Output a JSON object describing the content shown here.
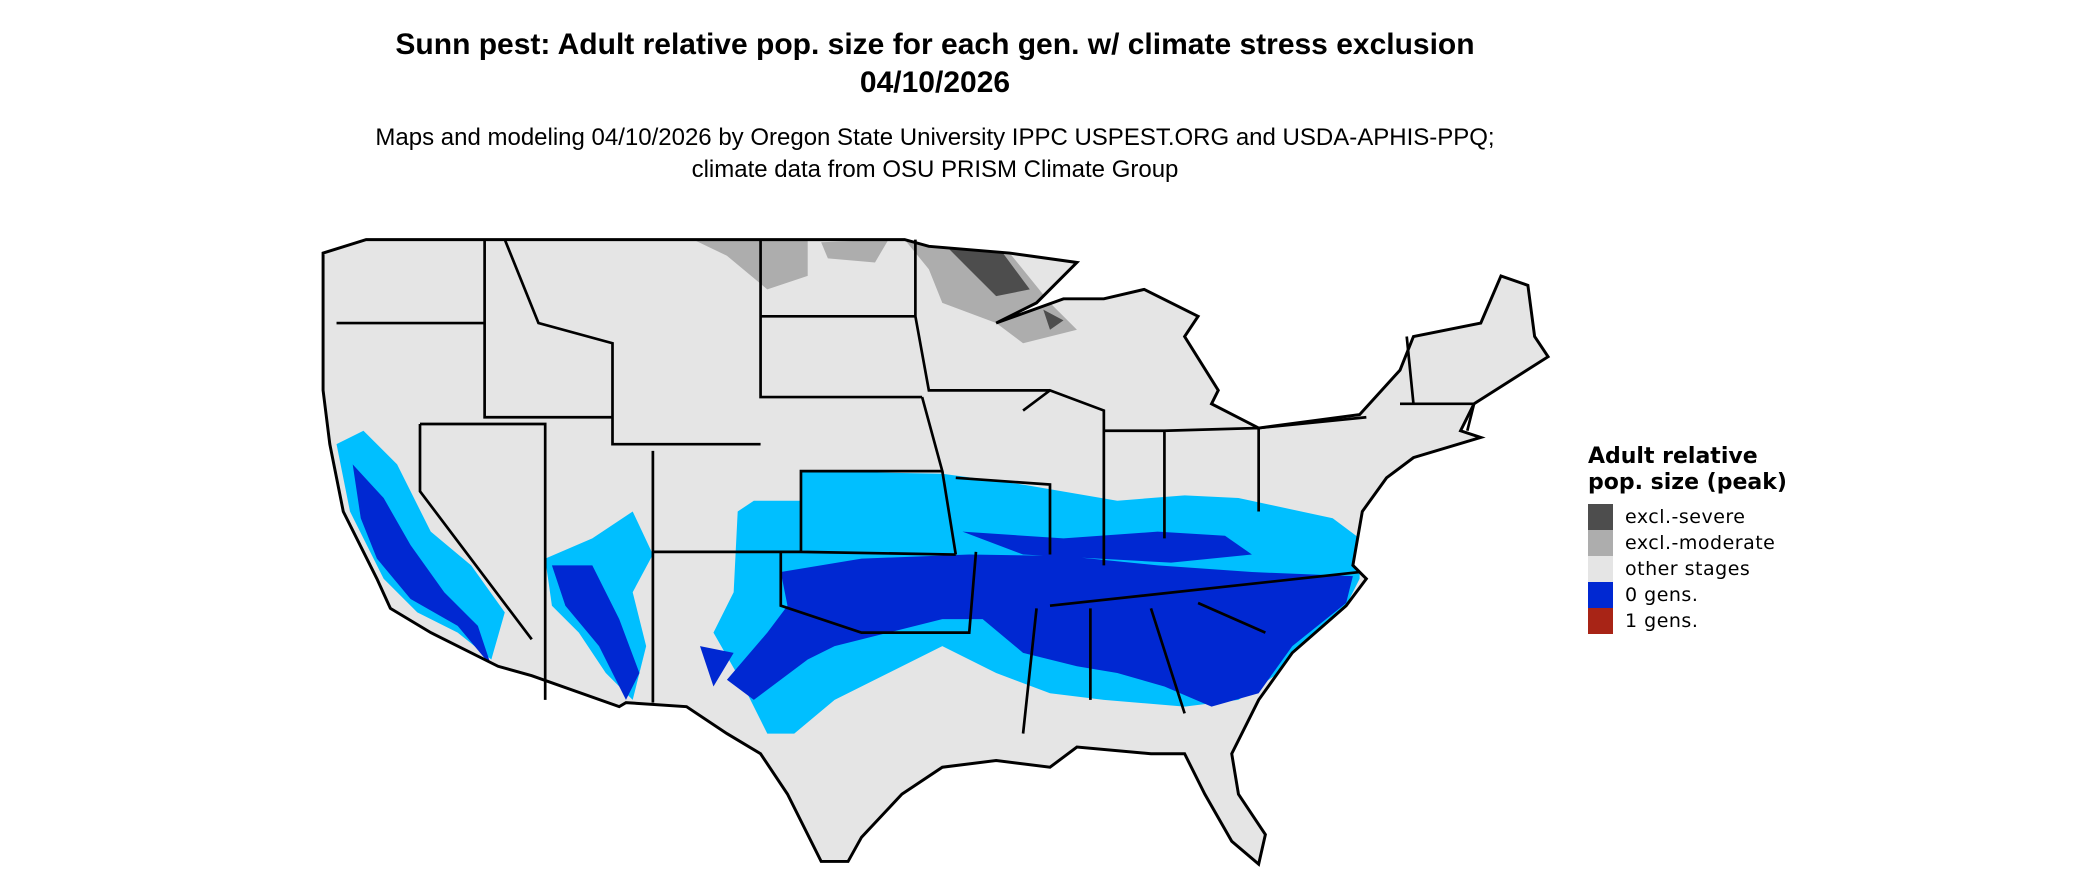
{
  "title": "Sunn pest: Adult relative pop. size for each gen. w/ climate stress exclusion 04/10/2026",
  "subtitle": "Maps and modeling 04/10/2026 by Oregon State University IPPC USPEST.ORG and USDA-APHIS-PPQ; climate data from OSU PRISM Climate Group",
  "legend": {
    "title": "Adult relative pop. size (peak)",
    "items": [
      {
        "label": "excl.-severe",
        "color": "#4D4D4D"
      },
      {
        "label": "excl.-moderate",
        "color": "#ADADAD"
      },
      {
        "label": "other stages",
        "color": "#E5E5E5"
      },
      {
        "label": "0 gens.",
        "color": "#0028D2"
      },
      {
        "label": "1 gens.",
        "color": "#A82416"
      }
    ]
  },
  "chart_data": {
    "type": "choropleth map",
    "title": "Sunn pest: Adult relative pop. size for each gen. w/ climate stress exclusion 04/10/2026",
    "legend_placement": "right",
    "colors": {
      "base": "#E5E5E5",
      "light_blue_shade": "#00BFFF",
      "dark_blue_shade": "#0028D2",
      "borders": "#000000"
    }
  }
}
